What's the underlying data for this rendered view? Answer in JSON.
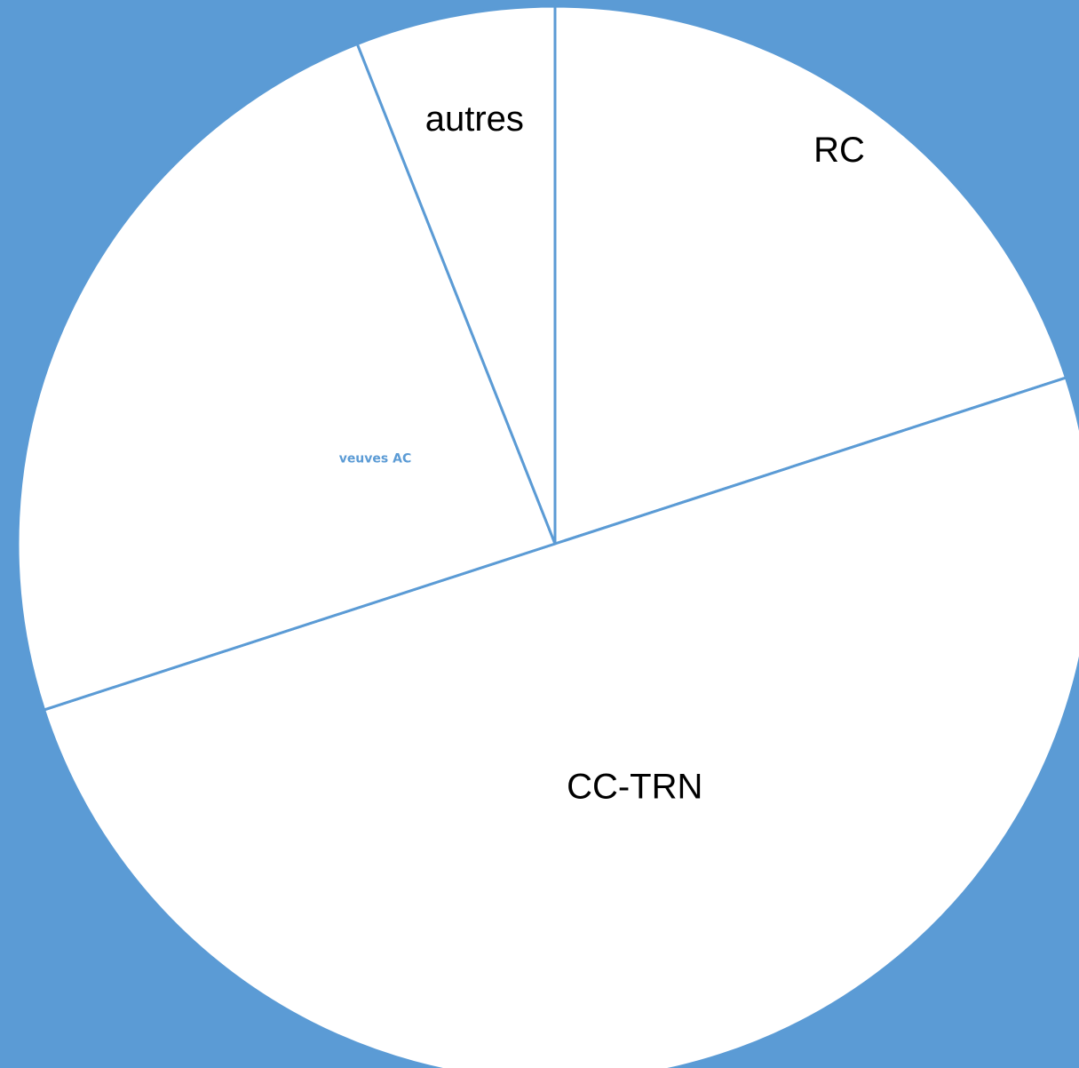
{
  "chart_data": {
    "type": "pie",
    "categories": [
      "RC",
      "CC-TRN",
      "veuves AC",
      "autres"
    ],
    "values": [
      20,
      50,
      24,
      6
    ],
    "colors": [
      "#ffffff",
      "#ffffff",
      "#ffffff",
      "#ffffff"
    ],
    "edge_color": "#5b9bd5",
    "background": "#5b9bd5"
  }
}
